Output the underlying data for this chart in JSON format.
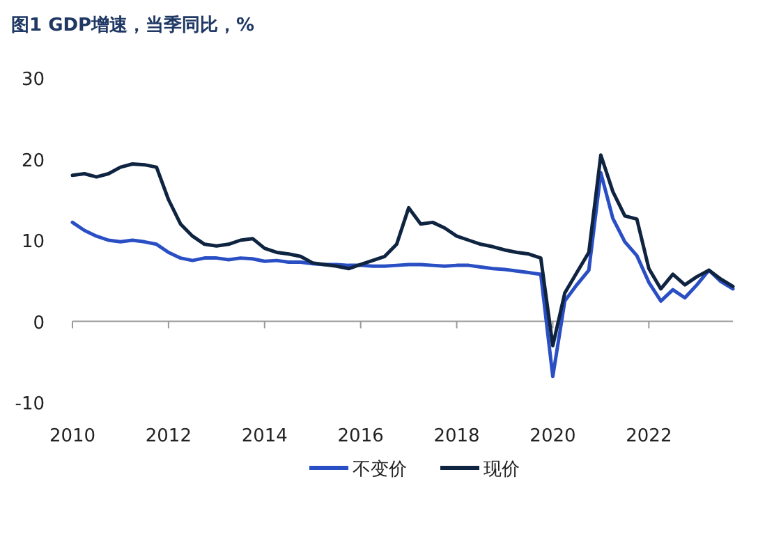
{
  "chart_data": {
    "type": "line",
    "title": "图1 GDP增速，当季同比，%",
    "x": [
      2010,
      2010.25,
      2010.5,
      2010.75,
      2011,
      2011.25,
      2011.5,
      2011.75,
      2012,
      2012.25,
      2012.5,
      2012.75,
      2013,
      2013.25,
      2013.5,
      2013.75,
      2014,
      2014.25,
      2014.5,
      2014.75,
      2015,
      2015.25,
      2015.5,
      2015.75,
      2016,
      2016.25,
      2016.5,
      2016.75,
      2017,
      2017.25,
      2017.5,
      2017.75,
      2018,
      2018.25,
      2018.5,
      2018.75,
      2019,
      2019.25,
      2019.5,
      2019.75,
      2020,
      2020.25,
      2020.5,
      2020.75,
      2021,
      2021.25,
      2021.5,
      2021.75,
      2022,
      2022.25,
      2022.5,
      2022.75,
      2023,
      2023.25,
      2023.5,
      2023.75
    ],
    "xlim": [
      2010,
      2023.75
    ],
    "xticks": [
      2010,
      2012,
      2014,
      2016,
      2018,
      2020,
      2022
    ],
    "ylim": [
      -10,
      30
    ],
    "yticks": [
      -10,
      0,
      10,
      20,
      30
    ],
    "series": [
      {
        "name": "不变价",
        "color": "#2a4fc4",
        "values": [
          12.2,
          11.2,
          10.5,
          10,
          9.8,
          10,
          9.8,
          9.5,
          8.5,
          7.8,
          7.5,
          7.8,
          7.8,
          7.6,
          7.8,
          7.7,
          7.4,
          7.5,
          7.3,
          7.3,
          7.1,
          7,
          7,
          6.9,
          6.9,
          6.8,
          6.8,
          6.9,
          7,
          7,
          6.9,
          6.8,
          6.9,
          6.9,
          6.7,
          6.5,
          6.4,
          6.2,
          6,
          5.8,
          -6.8,
          2.5,
          4.5,
          6.3,
          18.3,
          12.7,
          9.8,
          8.1,
          4.8,
          2.5,
          3.9,
          2.9,
          4.5,
          6.3,
          4.9,
          4
        ]
      },
      {
        "name": "现价",
        "color": "#0f2440",
        "values": [
          18,
          18.2,
          17.8,
          18.2,
          19,
          19.4,
          19.3,
          19,
          15,
          12,
          10.5,
          9.5,
          9.3,
          9.5,
          10,
          10.2,
          9,
          8.5,
          8.3,
          8,
          7.2,
          7,
          6.8,
          6.5,
          7,
          7.5,
          8,
          9.5,
          14,
          12,
          12.2,
          11.5,
          10.5,
          10,
          9.5,
          9.2,
          8.8,
          8.5,
          8.3,
          7.8,
          -3,
          3.5,
          6,
          8.5,
          20.5,
          16,
          13,
          12.6,
          6.5,
          4,
          5.8,
          4.5,
          5.5,
          6.3,
          5.2,
          4.3
        ]
      }
    ],
    "legend": "bottom",
    "line_style": "solid"
  }
}
